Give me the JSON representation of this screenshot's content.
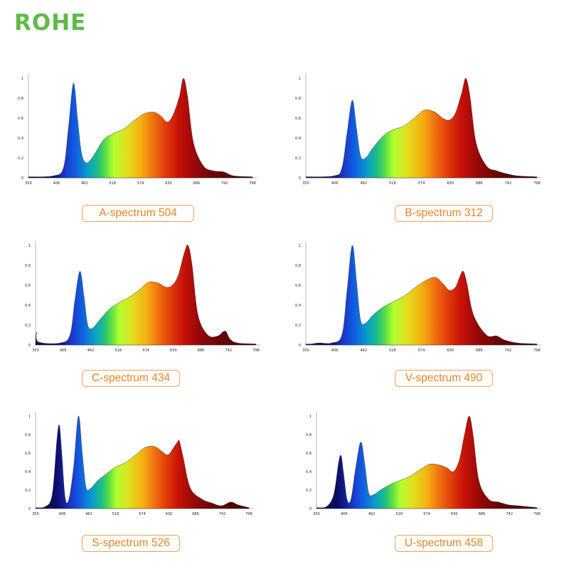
{
  "brand": {
    "name": "ROHE",
    "color": "#5dbb46"
  },
  "caption_color": "#e88424",
  "chart_data": [
    {
      "type": "area",
      "caption": "A-spectrum 504",
      "x_ticks": [
        "350",
        "406",
        "462",
        "518",
        "574",
        "630",
        "686",
        "742",
        "798"
      ],
      "y_ticks": [
        "0",
        "0.2",
        "0.4",
        "0.6",
        "0.8",
        "1"
      ],
      "xlim": [
        350,
        798
      ],
      "ylim": [
        0,
        1
      ],
      "peaks": [
        [
          350,
          0.01
        ],
        [
          400,
          0.02
        ],
        [
          420,
          0.1
        ],
        [
          430,
          0.5
        ],
        [
          440,
          0.95
        ],
        [
          448,
          0.6
        ],
        [
          456,
          0.25
        ],
        [
          466,
          0.15
        ],
        [
          480,
          0.22
        ],
        [
          500,
          0.38
        ],
        [
          518,
          0.44
        ],
        [
          540,
          0.49
        ],
        [
          560,
          0.57
        ],
        [
          580,
          0.64
        ],
        [
          600,
          0.66
        ],
        [
          615,
          0.62
        ],
        [
          628,
          0.56
        ],
        [
          640,
          0.64
        ],
        [
          652,
          0.82
        ],
        [
          660,
          1.0
        ],
        [
          668,
          0.82
        ],
        [
          680,
          0.35
        ],
        [
          700,
          0.12
        ],
        [
          720,
          0.07
        ],
        [
          740,
          0.06
        ],
        [
          760,
          0.02
        ],
        [
          798,
          0.01
        ]
      ]
    },
    {
      "type": "area",
      "caption": "B-spectrum 312",
      "x_ticks": [
        "350",
        "406",
        "462",
        "518",
        "574",
        "630",
        "686",
        "742",
        "798"
      ],
      "y_ticks": [
        "0",
        "0.2",
        "0.4",
        "0.6",
        "0.8",
        "1"
      ],
      "xlim": [
        350,
        798
      ],
      "ylim": [
        0,
        1
      ],
      "peaks": [
        [
          350,
          0.01
        ],
        [
          405,
          0.02
        ],
        [
          420,
          0.1
        ],
        [
          430,
          0.45
        ],
        [
          440,
          0.78
        ],
        [
          448,
          0.5
        ],
        [
          456,
          0.22
        ],
        [
          466,
          0.2
        ],
        [
          480,
          0.3
        ],
        [
          500,
          0.42
        ],
        [
          518,
          0.48
        ],
        [
          540,
          0.52
        ],
        [
          560,
          0.6
        ],
        [
          580,
          0.68
        ],
        [
          600,
          0.66
        ],
        [
          615,
          0.6
        ],
        [
          628,
          0.58
        ],
        [
          640,
          0.65
        ],
        [
          652,
          0.85
        ],
        [
          660,
          1.0
        ],
        [
          668,
          0.82
        ],
        [
          680,
          0.35
        ],
        [
          700,
          0.12
        ],
        [
          720,
          0.07
        ],
        [
          740,
          0.04
        ],
        [
          760,
          0.02
        ],
        [
          798,
          0.01
        ]
      ]
    },
    {
      "type": "area",
      "caption": "C-spectrum 434",
      "x_ticks": [
        "350",
        "406",
        "462",
        "518",
        "574",
        "630",
        "686",
        "742",
        "798"
      ],
      "y_ticks": [
        "0",
        "0.2",
        "0.4",
        "0.6",
        "0.8",
        "1"
      ],
      "xlim": [
        350,
        798
      ],
      "ylim": [
        0,
        1
      ],
      "peaks": [
        [
          350,
          0.01
        ],
        [
          352,
          0.13
        ],
        [
          356,
          0.03
        ],
        [
          400,
          0.02
        ],
        [
          420,
          0.1
        ],
        [
          430,
          0.45
        ],
        [
          440,
          0.74
        ],
        [
          448,
          0.5
        ],
        [
          456,
          0.2
        ],
        [
          466,
          0.17
        ],
        [
          480,
          0.25
        ],
        [
          500,
          0.36
        ],
        [
          518,
          0.42
        ],
        [
          540,
          0.48
        ],
        [
          560,
          0.55
        ],
        [
          580,
          0.63
        ],
        [
          600,
          0.62
        ],
        [
          615,
          0.58
        ],
        [
          628,
          0.6
        ],
        [
          640,
          0.7
        ],
        [
          652,
          0.92
        ],
        [
          660,
          1.0
        ],
        [
          668,
          0.8
        ],
        [
          680,
          0.3
        ],
        [
          700,
          0.1
        ],
        [
          720,
          0.09
        ],
        [
          735,
          0.14
        ],
        [
          745,
          0.06
        ],
        [
          760,
          0.02
        ],
        [
          798,
          0.01
        ]
      ]
    },
    {
      "type": "area",
      "caption": "V-spectrum 490",
      "x_ticks": [
        "350",
        "406",
        "462",
        "518",
        "574",
        "630",
        "686",
        "742",
        "798"
      ],
      "y_ticks": [
        "0",
        "0.2",
        "0.4",
        "0.6",
        "0.8",
        "1"
      ],
      "xlim": [
        350,
        798
      ],
      "ylim": [
        0,
        1
      ],
      "peaks": [
        [
          350,
          0.01
        ],
        [
          360,
          0.01
        ],
        [
          375,
          0.02
        ],
        [
          400,
          0.02
        ],
        [
          420,
          0.1
        ],
        [
          430,
          0.55
        ],
        [
          440,
          1.0
        ],
        [
          448,
          0.65
        ],
        [
          456,
          0.25
        ],
        [
          466,
          0.22
        ],
        [
          480,
          0.3
        ],
        [
          500,
          0.38
        ],
        [
          518,
          0.43
        ],
        [
          540,
          0.49
        ],
        [
          560,
          0.57
        ],
        [
          580,
          0.64
        ],
        [
          600,
          0.68
        ],
        [
          615,
          0.62
        ],
        [
          628,
          0.55
        ],
        [
          640,
          0.58
        ],
        [
          648,
          0.68
        ],
        [
          655,
          0.74
        ],
        [
          662,
          0.62
        ],
        [
          675,
          0.3
        ],
        [
          700,
          0.1
        ],
        [
          720,
          0.09
        ],
        [
          735,
          0.05
        ],
        [
          760,
          0.02
        ],
        [
          798,
          0.01
        ]
      ]
    },
    {
      "type": "area",
      "caption": "S-spectrum 526",
      "x_ticks": [
        "350",
        "406",
        "462",
        "518",
        "574",
        "630",
        "686",
        "742",
        "798"
      ],
      "y_ticks": [
        "0",
        "0.2",
        "0.4",
        "0.6",
        "0.8",
        "1"
      ],
      "xlim": [
        350,
        798
      ],
      "ylim": [
        0,
        1
      ],
      "peaks": [
        [
          350,
          0.01
        ],
        [
          370,
          0.02
        ],
        [
          385,
          0.15
        ],
        [
          395,
          0.75
        ],
        [
          400,
          0.9
        ],
        [
          405,
          0.6
        ],
        [
          412,
          0.12
        ],
        [
          420,
          0.1
        ],
        [
          430,
          0.45
        ],
        [
          440,
          1.0
        ],
        [
          448,
          0.6
        ],
        [
          456,
          0.23
        ],
        [
          466,
          0.22
        ],
        [
          480,
          0.3
        ],
        [
          500,
          0.38
        ],
        [
          518,
          0.45
        ],
        [
          540,
          0.5
        ],
        [
          560,
          0.58
        ],
        [
          580,
          0.66
        ],
        [
          600,
          0.67
        ],
        [
          615,
          0.62
        ],
        [
          628,
          0.58
        ],
        [
          640,
          0.66
        ],
        [
          648,
          0.72
        ],
        [
          652,
          0.73
        ],
        [
          660,
          0.55
        ],
        [
          675,
          0.22
        ],
        [
          700,
          0.1
        ],
        [
          720,
          0.06
        ],
        [
          740,
          0.03
        ],
        [
          760,
          0.07
        ],
        [
          775,
          0.04
        ],
        [
          798,
          0.01
        ]
      ]
    },
    {
      "type": "area",
      "caption": "U-spectrum 458",
      "x_ticks": [
        "350",
        "406",
        "462",
        "518",
        "574",
        "630",
        "686",
        "742",
        "798"
      ],
      "y_ticks": [
        "0",
        "0.2",
        "0.4",
        "0.6",
        "0.8",
        "1"
      ],
      "xlim": [
        350,
        798
      ],
      "ylim": [
        0,
        1
      ],
      "peaks": [
        [
          350,
          0.01
        ],
        [
          370,
          0.02
        ],
        [
          385,
          0.15
        ],
        [
          395,
          0.5
        ],
        [
          400,
          0.57
        ],
        [
          405,
          0.38
        ],
        [
          412,
          0.1
        ],
        [
          420,
          0.1
        ],
        [
          430,
          0.45
        ],
        [
          440,
          0.72
        ],
        [
          448,
          0.48
        ],
        [
          456,
          0.17
        ],
        [
          466,
          0.15
        ],
        [
          480,
          0.2
        ],
        [
          500,
          0.26
        ],
        [
          518,
          0.3
        ],
        [
          540,
          0.35
        ],
        [
          560,
          0.42
        ],
        [
          580,
          0.48
        ],
        [
          600,
          0.47
        ],
        [
          615,
          0.44
        ],
        [
          628,
          0.4
        ],
        [
          640,
          0.52
        ],
        [
          650,
          0.78
        ],
        [
          660,
          1.0
        ],
        [
          668,
          0.8
        ],
        [
          680,
          0.3
        ],
        [
          700,
          0.1
        ],
        [
          720,
          0.07
        ],
        [
          740,
          0.04
        ],
        [
          760,
          0.03
        ],
        [
          798,
          0.01
        ]
      ]
    }
  ]
}
